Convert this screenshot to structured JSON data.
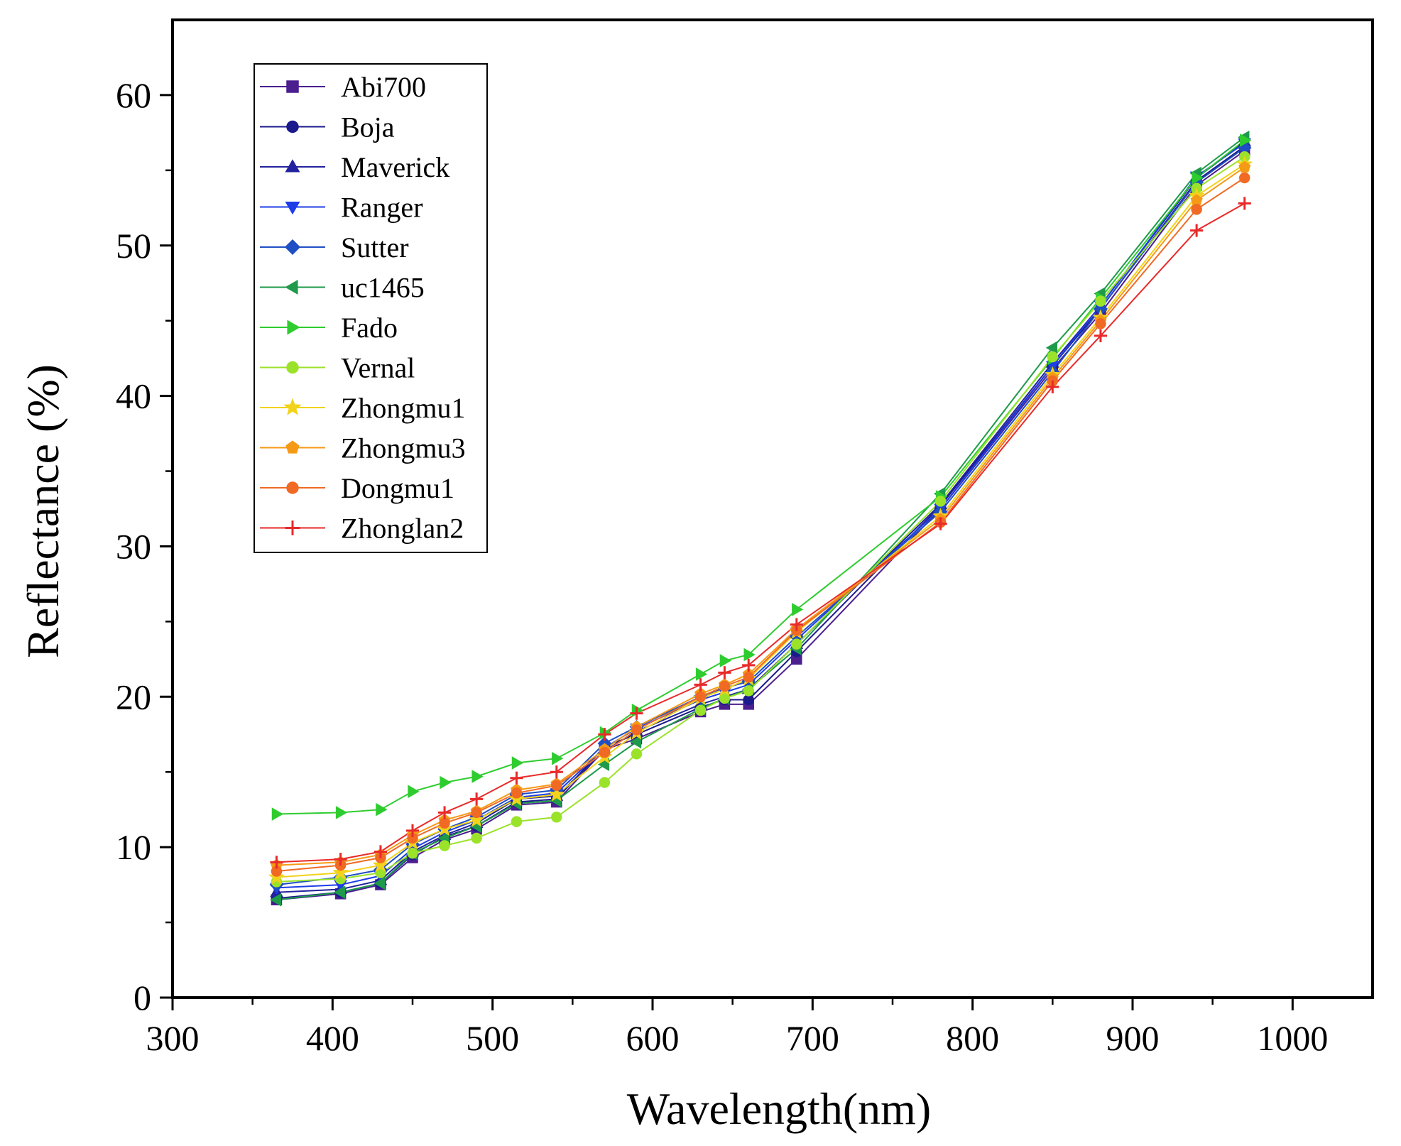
{
  "chart_data": {
    "type": "line",
    "title": "",
    "xlabel": "Wavelength(nm)",
    "ylabel": "Reflectance (%)",
    "xlim": [
      300,
      1050
    ],
    "ylim": [
      0,
      65
    ],
    "xticks": [
      300,
      400,
      500,
      600,
      700,
      800,
      900,
      1000
    ],
    "yticks": [
      0,
      10,
      20,
      30,
      40,
      50,
      60
    ],
    "grid": false,
    "legend_position": "top-left",
    "x": [
      365,
      405,
      430,
      450,
      470,
      490,
      515,
      540,
      570,
      590,
      630,
      645,
      660,
      690,
      780,
      850,
      880,
      940,
      970
    ],
    "series": [
      {
        "name": "Abi700",
        "color": "#4b1f8f",
        "marker": "square",
        "values": [
          6.5,
          6.9,
          7.5,
          9.3,
          10.5,
          11.2,
          12.8,
          13.0,
          16.5,
          17.2,
          19.0,
          19.5,
          19.5,
          22.5,
          32.5,
          41.8,
          45.5,
          54.0,
          56.3
        ]
      },
      {
        "name": "Boja",
        "color": "#1a1a8c",
        "marker": "circle",
        "values": [
          6.6,
          7.0,
          7.6,
          9.5,
          10.7,
          11.4,
          13.0,
          13.2,
          16.7,
          17.5,
          19.3,
          19.8,
          19.8,
          23.0,
          32.7,
          42.0,
          45.8,
          54.3,
          56.6
        ]
      },
      {
        "name": "Maverick",
        "color": "#22229e",
        "marker": "triangle-up",
        "values": [
          7.0,
          7.2,
          7.8,
          9.7,
          10.8,
          11.6,
          13.2,
          13.4,
          16.4,
          17.7,
          19.5,
          20.0,
          20.5,
          23.5,
          32.8,
          42.2,
          46.0,
          54.5,
          56.9
        ]
      },
      {
        "name": "Ranger",
        "color": "#1e3de6",
        "marker": "triangle-down",
        "values": [
          7.3,
          7.5,
          8.1,
          9.9,
          11.0,
          11.8,
          13.3,
          13.6,
          16.6,
          17.9,
          19.8,
          20.3,
          20.8,
          23.8,
          32.5,
          42.0,
          46.0,
          54.6,
          56.8
        ]
      },
      {
        "name": "Sutter",
        "color": "#1f4fc4",
        "marker": "diamond",
        "values": [
          7.5,
          8.0,
          8.5,
          10.2,
          11.2,
          12.0,
          13.5,
          13.8,
          16.9,
          18.0,
          20.0,
          20.6,
          21.0,
          24.0,
          32.3,
          41.6,
          45.8,
          54.2,
          56.5
        ]
      },
      {
        "name": "uc1465",
        "color": "#1e9a4a",
        "marker": "triangle-left",
        "values": [
          6.5,
          7.0,
          7.6,
          9.6,
          10.6,
          11.4,
          12.9,
          13.1,
          15.5,
          17.0,
          19.2,
          19.9,
          20.5,
          23.2,
          33.5,
          43.2,
          46.8,
          54.8,
          57.2
        ]
      },
      {
        "name": "Fado",
        "color": "#2fcc2f",
        "marker": "triangle-right",
        "values": [
          12.2,
          12.3,
          12.5,
          13.7,
          14.3,
          14.7,
          15.6,
          15.9,
          17.6,
          19.1,
          21.5,
          22.4,
          22.8,
          25.8,
          33.3,
          42.5,
          46.5,
          54.5,
          57.0
        ]
      },
      {
        "name": "Vernal",
        "color": "#9be22a",
        "marker": "circle",
        "values": [
          7.7,
          7.9,
          8.3,
          9.6,
          10.1,
          10.6,
          11.7,
          12.0,
          14.3,
          16.2,
          19.1,
          19.9,
          20.4,
          23.5,
          33.0,
          42.6,
          46.3,
          53.8,
          55.9
        ]
      },
      {
        "name": "Zhongmu1",
        "color": "#f2d21a",
        "marker": "star",
        "values": [
          8.0,
          8.3,
          8.8,
          10.3,
          11.2,
          11.8,
          13.2,
          13.5,
          16.0,
          17.6,
          19.9,
          20.5,
          21.2,
          24.3,
          32.0,
          41.4,
          45.2,
          53.3,
          55.4
        ]
      },
      {
        "name": "Zhongmu3",
        "color": "#f59a16",
        "marker": "pentagon",
        "values": [
          8.8,
          9.0,
          9.5,
          10.8,
          11.8,
          12.4,
          13.8,
          14.2,
          16.5,
          18.0,
          20.2,
          20.8,
          21.5,
          24.5,
          31.8,
          41.2,
          45.0,
          53.0,
          55.2
        ]
      },
      {
        "name": "Dongmu1",
        "color": "#f06a24",
        "marker": "circle",
        "values": [
          8.4,
          8.8,
          9.3,
          10.6,
          11.6,
          12.3,
          13.6,
          14.1,
          16.3,
          17.8,
          20.0,
          20.7,
          21.3,
          24.4,
          31.6,
          41.0,
          44.8,
          52.4,
          54.5
        ]
      },
      {
        "name": "Zhonglan2",
        "color": "#e82a2a",
        "marker": "plus",
        "values": [
          9.0,
          9.2,
          9.7,
          11.1,
          12.3,
          13.2,
          14.6,
          15.0,
          17.5,
          18.9,
          20.8,
          21.6,
          22.1,
          24.8,
          31.5,
          40.6,
          44.0,
          51.0,
          52.8
        ]
      }
    ]
  }
}
